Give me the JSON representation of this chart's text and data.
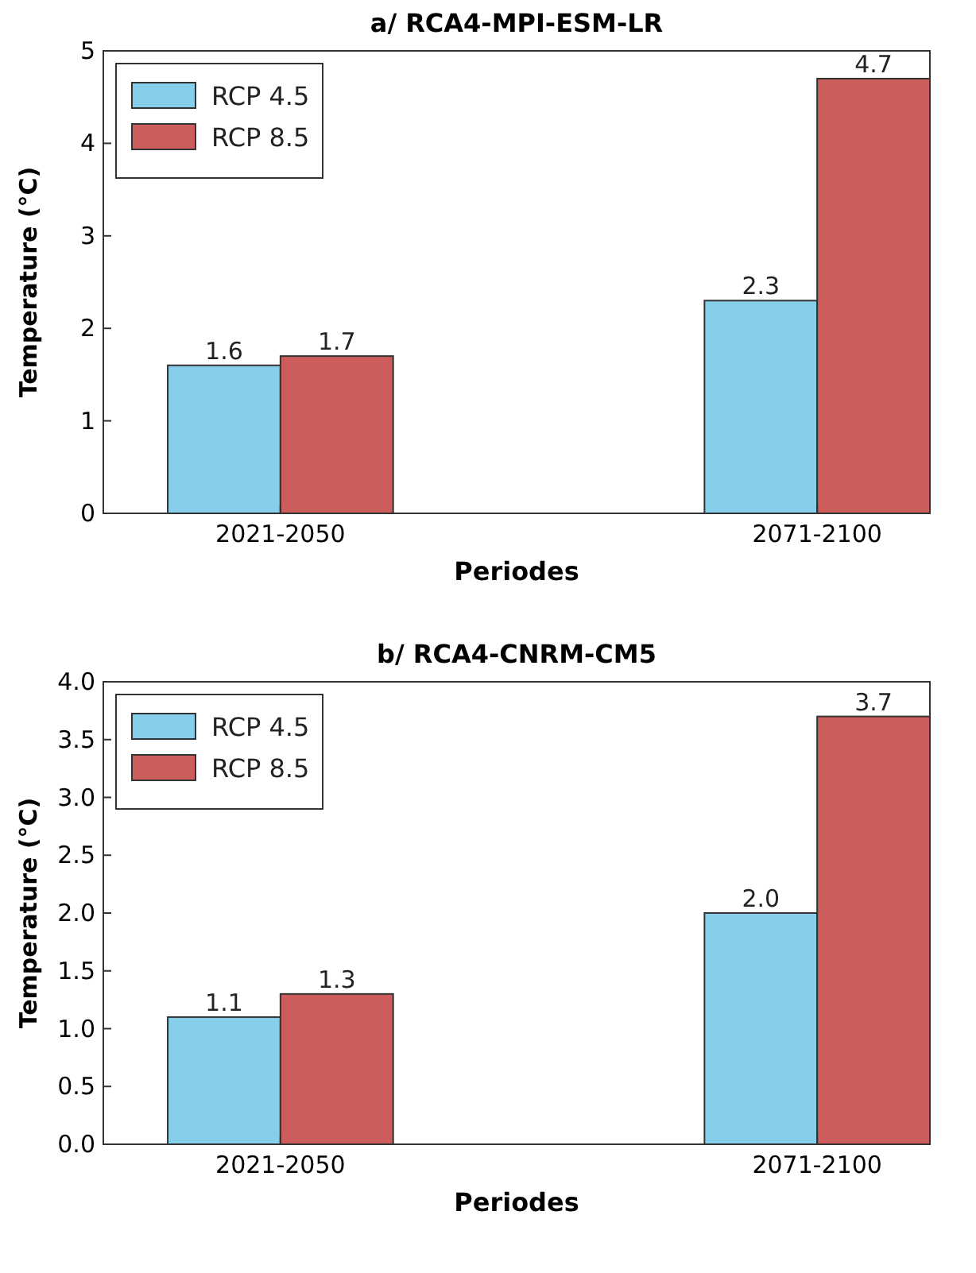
{
  "chart_data": [
    {
      "type": "bar",
      "title": "a/ RCA4-MPI-ESM-LR",
      "xlabel": "Periodes",
      "ylabel": "Temperature (°C)",
      "categories": [
        "2021-2050",
        "2071-2100"
      ],
      "series": [
        {
          "name": "RCP 4.5",
          "color": "#87ceeb",
          "values": [
            1.6,
            2.3
          ],
          "value_labels": [
            "1.6",
            "2.3"
          ]
        },
        {
          "name": "RCP 8.5",
          "color": "#cd5c5c",
          "values": [
            1.7,
            4.7
          ],
          "value_labels": [
            "1.7",
            "4.7"
          ]
        }
      ],
      "ylim": [
        0,
        5
      ],
      "yticks": [
        0,
        1,
        2,
        3,
        4,
        5
      ],
      "grid": false,
      "legend": "top left"
    },
    {
      "type": "bar",
      "title": "b/ RCA4-CNRM-CM5",
      "xlabel": "Periodes",
      "ylabel": "Temperature (°C)",
      "categories": [
        "2021-2050",
        "2071-2100"
      ],
      "series": [
        {
          "name": "RCP 4.5",
          "color": "#87ceeb",
          "values": [
            1.1,
            2.0
          ],
          "value_labels": [
            "1.1",
            "2.0"
          ]
        },
        {
          "name": "RCP 8.5",
          "color": "#cd5c5c",
          "values": [
            1.3,
            3.7
          ],
          "value_labels": [
            "1.3",
            "3.7"
          ]
        }
      ],
      "ylim": [
        0,
        4
      ],
      "yticks": [
        {
          "value": 0,
          "label": "0.0"
        },
        0.5,
        {
          "value": 1,
          "label": "1.0"
        },
        1.5,
        {
          "value": 2,
          "label": "2.0"
        },
        2.5,
        {
          "value": 3,
          "label": "3.0"
        },
        3.5,
        {
          "value": 4,
          "label": "4.0"
        }
      ],
      "grid": false,
      "legend": "top left"
    }
  ]
}
